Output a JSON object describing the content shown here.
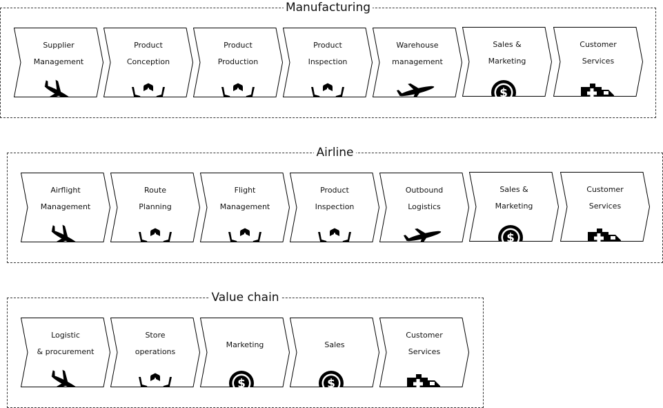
{
  "groups": [
    {
      "title": "Manufacturing",
      "steps": [
        {
          "label": "Supplier\nManagement",
          "icon": "airplane-landing-icon"
        },
        {
          "label": "Product\nConception",
          "icon": "hands-box-icon"
        },
        {
          "label": "Product\nProduction",
          "icon": "hands-box-icon"
        },
        {
          "label": "Product\nInspection",
          "icon": "hands-box-icon"
        },
        {
          "label": "Warehouse\nmanagement",
          "icon": "airplane-takeoff-icon"
        },
        {
          "label": "Sales &\nMarketing",
          "icon": "dollar-coin-icon"
        },
        {
          "label": "Customer\nServices",
          "icon": "ambulance-icon"
        }
      ]
    },
    {
      "title": "Airline",
      "steps": [
        {
          "label": "Airflight\nManagement",
          "icon": "airplane-landing-icon"
        },
        {
          "label": "Route\nPlanning",
          "icon": "hands-box-icon"
        },
        {
          "label": "Flight\nManagement",
          "icon": "hands-box-icon"
        },
        {
          "label": "Product\nInspection",
          "icon": "hands-box-icon"
        },
        {
          "label": "Outbound\nLogistics",
          "icon": "airplane-takeoff-icon"
        },
        {
          "label": "Sales &\nMarketing",
          "icon": "dollar-coin-icon"
        },
        {
          "label": "Customer\nServices",
          "icon": "ambulance-icon"
        }
      ]
    },
    {
      "title": "Value chain",
      "steps": [
        {
          "label": "Logistic\n& procurement",
          "icon": "airplane-landing-icon"
        },
        {
          "label": "Store\noperations",
          "icon": "hands-box-icon"
        },
        {
          "label": "Marketing",
          "icon": "dollar-coin-icon"
        },
        {
          "label": "Sales",
          "icon": "dollar-coin-icon"
        },
        {
          "label": "Customer\nServices",
          "icon": "ambulance-icon"
        }
      ]
    }
  ]
}
